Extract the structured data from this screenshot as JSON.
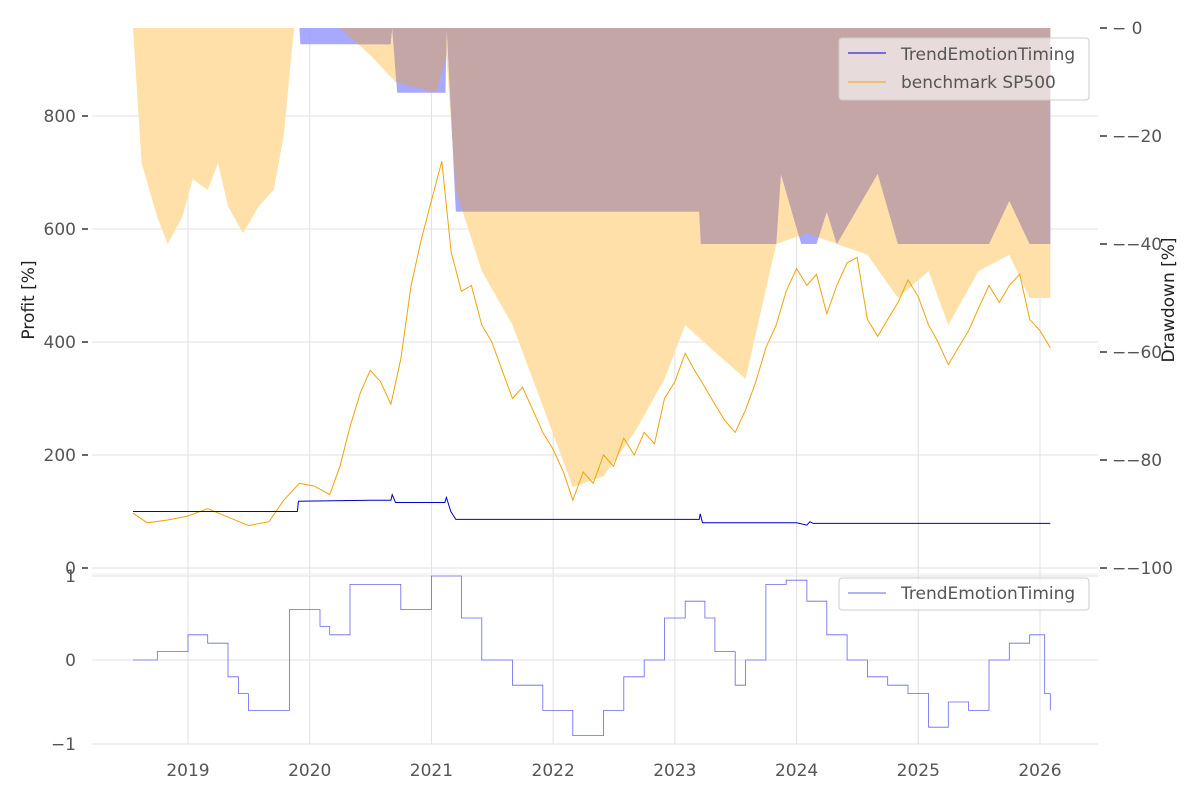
{
  "chart_data": [
    {
      "type": "line",
      "panel": "profit",
      "ylabel": "Profit [%]",
      "ylim": [
        0,
        950
      ],
      "yticks": [
        "0",
        "200",
        "400",
        "600",
        "800"
      ],
      "legend_placement": "top-right",
      "series": [
        {
          "name": "TrendEmotionTiming",
          "color": "#0000cc",
          "points": [
            [
              "2018-07-20",
              100
            ],
            [
              "2019-10-01",
              100
            ],
            [
              "2019-11-25",
              100
            ],
            [
              "2019-11-28",
              118
            ],
            [
              "2020-07-01",
              120
            ],
            [
              "2020-09-01",
              120
            ],
            [
              "2020-09-05",
              130
            ],
            [
              "2020-09-15",
              116
            ],
            [
              "2021-02-10",
              116
            ],
            [
              "2021-02-15",
              125
            ],
            [
              "2021-02-28",
              100
            ],
            [
              "2021-03-15",
              86
            ],
            [
              "2022-06-01",
              86
            ],
            [
              "2023-03-15",
              86
            ],
            [
              "2023-03-18",
              96
            ],
            [
              "2023-03-25",
              80
            ],
            [
              "2024-01-01",
              80
            ],
            [
              "2024-02-01",
              76
            ],
            [
              "2024-02-10",
              82
            ],
            [
              "2024-02-20",
              79
            ],
            [
              "2025-06-01",
              79
            ],
            [
              "2026-02-01",
              79
            ]
          ]
        },
        {
          "name": "benchmark SP500",
          "color": "#f0a30a",
          "points": [
            [
              "2018-07-20",
              97
            ],
            [
              "2018-09-01",
              80
            ],
            [
              "2018-11-01",
              85
            ],
            [
              "2019-01-01",
              92
            ],
            [
              "2019-03-01",
              105
            ],
            [
              "2019-05-01",
              90
            ],
            [
              "2019-07-01",
              75
            ],
            [
              "2019-09-01",
              82
            ],
            [
              "2019-10-15",
              120
            ],
            [
              "2019-12-01",
              150
            ],
            [
              "2020-01-15",
              145
            ],
            [
              "2020-03-01",
              130
            ],
            [
              "2020-04-01",
              180
            ],
            [
              "2020-05-01",
              250
            ],
            [
              "2020-06-01",
              310
            ],
            [
              "2020-07-01",
              350
            ],
            [
              "2020-08-01",
              330
            ],
            [
              "2020-09-01",
              290
            ],
            [
              "2020-10-01",
              370
            ],
            [
              "2020-11-01",
              500
            ],
            [
              "2020-12-01",
              580
            ],
            [
              "2021-01-01",
              650
            ],
            [
              "2021-02-01",
              720
            ],
            [
              "2021-03-01",
              560
            ],
            [
              "2021-04-01",
              490
            ],
            [
              "2021-05-01",
              500
            ],
            [
              "2021-06-01",
              430
            ],
            [
              "2021-07-01",
              400
            ],
            [
              "2021-08-01",
              350
            ],
            [
              "2021-09-01",
              300
            ],
            [
              "2021-10-01",
              320
            ],
            [
              "2021-11-01",
              280
            ],
            [
              "2021-12-01",
              240
            ],
            [
              "2022-01-01",
              210
            ],
            [
              "2022-02-01",
              170
            ],
            [
              "2022-03-01",
              120
            ],
            [
              "2022-04-01",
              170
            ],
            [
              "2022-05-01",
              150
            ],
            [
              "2022-06-01",
              200
            ],
            [
              "2022-07-01",
              180
            ],
            [
              "2022-08-01",
              230
            ],
            [
              "2022-09-01",
              200
            ],
            [
              "2022-10-01",
              240
            ],
            [
              "2022-11-01",
              220
            ],
            [
              "2022-12-01",
              300
            ],
            [
              "2023-01-01",
              330
            ],
            [
              "2023-02-01",
              380
            ],
            [
              "2023-03-01",
              350
            ],
            [
              "2023-04-01",
              320
            ],
            [
              "2023-05-01",
              290
            ],
            [
              "2023-06-01",
              260
            ],
            [
              "2023-07-01",
              240
            ],
            [
              "2023-08-01",
              280
            ],
            [
              "2023-09-01",
              330
            ],
            [
              "2023-10-01",
              390
            ],
            [
              "2023-11-01",
              430
            ],
            [
              "2023-12-01",
              490
            ],
            [
              "2024-01-01",
              530
            ],
            [
              "2024-02-01",
              500
            ],
            [
              "2024-03-01",
              520
            ],
            [
              "2024-04-01",
              450
            ],
            [
              "2024-05-01",
              500
            ],
            [
              "2024-06-01",
              540
            ],
            [
              "2024-07-01",
              550
            ],
            [
              "2024-08-01",
              440
            ],
            [
              "2024-09-01",
              410
            ],
            [
              "2024-10-01",
              440
            ],
            [
              "2024-11-01",
              470
            ],
            [
              "2024-12-01",
              510
            ],
            [
              "2025-01-01",
              480
            ],
            [
              "2025-02-01",
              430
            ],
            [
              "2025-03-01",
              400
            ],
            [
              "2025-04-01",
              360
            ],
            [
              "2025-05-01",
              390
            ],
            [
              "2025-06-01",
              420
            ],
            [
              "2025-07-01",
              460
            ],
            [
              "2025-08-01",
              500
            ],
            [
              "2025-09-01",
              470
            ],
            [
              "2025-10-01",
              500
            ],
            [
              "2025-11-01",
              520
            ],
            [
              "2025-12-01",
              440
            ],
            [
              "2026-01-01",
              420
            ],
            [
              "2026-02-01",
              390
            ]
          ]
        }
      ]
    },
    {
      "type": "area",
      "panel": "drawdown",
      "ylabel": "Drawdown [%]",
      "ylim": [
        -100,
        0
      ],
      "yticks": [
        "−20",
        "−40",
        "−60",
        "−80",
        "−100"
      ],
      "ytick_zero": "0",
      "series": [
        {
          "name": "TrendEmotionTiming",
          "color": "#9999ff",
          "points": [
            [
              "2018-07-20",
              0
            ],
            [
              "2019-12-01",
              0
            ],
            [
              "2019-12-04",
              -3
            ],
            [
              "2020-08-31",
              -3
            ],
            [
              "2020-09-05",
              0
            ],
            [
              "2020-09-20",
              -12
            ],
            [
              "2021-02-12",
              -12
            ],
            [
              "2021-02-16",
              0
            ],
            [
              "2021-03-01",
              -16
            ],
            [
              "2021-03-15",
              -34
            ],
            [
              "2022-06-01",
              -34
            ],
            [
              "2023-03-15",
              -34
            ],
            [
              "2023-03-20",
              -40
            ],
            [
              "2023-11-01",
              -40
            ],
            [
              "2023-11-15",
              -27
            ],
            [
              "2024-01-15",
              -40
            ],
            [
              "2024-03-01",
              -40
            ],
            [
              "2024-04-01",
              -34
            ],
            [
              "2024-05-01",
              -40
            ],
            [
              "2024-09-01",
              -27
            ],
            [
              "2024-11-01",
              -40
            ],
            [
              "2025-08-01",
              -40
            ],
            [
              "2025-10-01",
              -32
            ],
            [
              "2025-12-01",
              -40
            ],
            [
              "2026-02-01",
              -40
            ]
          ]
        },
        {
          "name": "benchmark SP500",
          "color": "#ffe0a8",
          "points": [
            [
              "2018-07-20",
              0
            ],
            [
              "2018-08-15",
              -25
            ],
            [
              "2018-10-01",
              -35
            ],
            [
              "2018-11-01",
              -40
            ],
            [
              "2018-12-15",
              -35
            ],
            [
              "2019-01-15",
              -28
            ],
            [
              "2019-03-01",
              -30
            ],
            [
              "2019-04-01",
              -25
            ],
            [
              "2019-05-01",
              -33
            ],
            [
              "2019-06-15",
              -38
            ],
            [
              "2019-08-01",
              -33
            ],
            [
              "2019-09-15",
              -30
            ],
            [
              "2019-10-15",
              -20
            ],
            [
              "2019-11-15",
              0
            ],
            [
              "2020-04-01",
              0
            ],
            [
              "2020-07-01",
              -5
            ],
            [
              "2020-09-15",
              -10
            ],
            [
              "2021-01-15",
              -12
            ],
            [
              "2021-02-15",
              -5
            ],
            [
              "2021-03-15",
              -30
            ],
            [
              "2021-06-01",
              -45
            ],
            [
              "2021-09-01",
              -55
            ],
            [
              "2021-12-01",
              -70
            ],
            [
              "2022-03-01",
              -85
            ],
            [
              "2022-06-01",
              -83
            ],
            [
              "2022-09-01",
              -75
            ],
            [
              "2022-12-01",
              -65
            ],
            [
              "2023-02-01",
              -55
            ],
            [
              "2023-05-01",
              -60
            ],
            [
              "2023-08-01",
              -65
            ],
            [
              "2023-11-01",
              -40
            ],
            [
              "2024-02-01",
              -38
            ],
            [
              "2024-05-01",
              -40
            ],
            [
              "2024-08-01",
              -42
            ],
            [
              "2024-11-01",
              -50
            ],
            [
              "2025-02-01",
              -45
            ],
            [
              "2025-04-01",
              -55
            ],
            [
              "2025-07-01",
              -45
            ],
            [
              "2025-10-01",
              -42
            ],
            [
              "2025-12-01",
              -50
            ],
            [
              "2026-02-01",
              -50
            ]
          ]
        }
      ],
      "overlap_color": "#c4a6a6"
    },
    {
      "type": "line",
      "panel": "signal",
      "ylim": [
        -1,
        1
      ],
      "yticks": [
        "1",
        "0",
        "−1"
      ],
      "legend_placement": "top-right",
      "series": [
        {
          "name": "TrendEmotionTiming",
          "color": "#6666ee",
          "points": [
            [
              "2018-07-20",
              0
            ],
            [
              "2018-09-01",
              0
            ],
            [
              "2018-10-01",
              0.1
            ],
            [
              "2018-12-01",
              0.1
            ],
            [
              "2019-01-01",
              0.3
            ],
            [
              "2019-03-01",
              0.2
            ],
            [
              "2019-05-01",
              -0.2
            ],
            [
              "2019-06-01",
              -0.4
            ],
            [
              "2019-07-01",
              -0.6
            ],
            [
              "2019-10-01",
              -0.6
            ],
            [
              "2019-11-01",
              0.6
            ],
            [
              "2020-01-01",
              0.6
            ],
            [
              "2020-02-01",
              0.4
            ],
            [
              "2020-03-01",
              0.3
            ],
            [
              "2020-05-01",
              0.9
            ],
            [
              "2020-08-01",
              0.9
            ],
            [
              "2020-10-01",
              0.6
            ],
            [
              "2020-12-01",
              0.6
            ],
            [
              "2021-01-01",
              1.0
            ],
            [
              "2021-02-01",
              1.0
            ],
            [
              "2021-04-01",
              0.5
            ],
            [
              "2021-06-01",
              0.0
            ],
            [
              "2021-09-01",
              -0.3
            ],
            [
              "2021-12-01",
              -0.6
            ],
            [
              "2022-03-01",
              -0.9
            ],
            [
              "2022-06-01",
              -0.6
            ],
            [
              "2022-08-01",
              -0.2
            ],
            [
              "2022-10-01",
              0.0
            ],
            [
              "2022-12-01",
              0.5
            ],
            [
              "2023-02-01",
              0.7
            ],
            [
              "2023-04-01",
              0.5
            ],
            [
              "2023-05-01",
              0.1
            ],
            [
              "2023-07-01",
              -0.3
            ],
            [
              "2023-08-01",
              0.0
            ],
            [
              "2023-10-01",
              0.9
            ],
            [
              "2023-12-01",
              0.95
            ],
            [
              "2024-02-01",
              0.7
            ],
            [
              "2024-04-01",
              0.3
            ],
            [
              "2024-06-01",
              0.0
            ],
            [
              "2024-08-01",
              -0.2
            ],
            [
              "2024-10-01",
              -0.3
            ],
            [
              "2024-12-01",
              -0.4
            ],
            [
              "2025-02-01",
              -0.8
            ],
            [
              "2025-04-01",
              -0.5
            ],
            [
              "2025-06-01",
              -0.6
            ],
            [
              "2025-08-01",
              0.0
            ],
            [
              "2025-10-01",
              0.2
            ],
            [
              "2025-12-01",
              0.3
            ],
            [
              "2026-01-15",
              -0.4
            ],
            [
              "2026-02-01",
              -0.6
            ]
          ]
        }
      ]
    }
  ],
  "x_axis": {
    "ticks": [
      "2019",
      "2020",
      "2021",
      "2022",
      "2023",
      "2024",
      "2025",
      "2026"
    ]
  },
  "legend_top": [
    "TrendEmotionTiming",
    "benchmark SP500"
  ],
  "legend_bottom": [
    "TrendEmotionTiming"
  ]
}
